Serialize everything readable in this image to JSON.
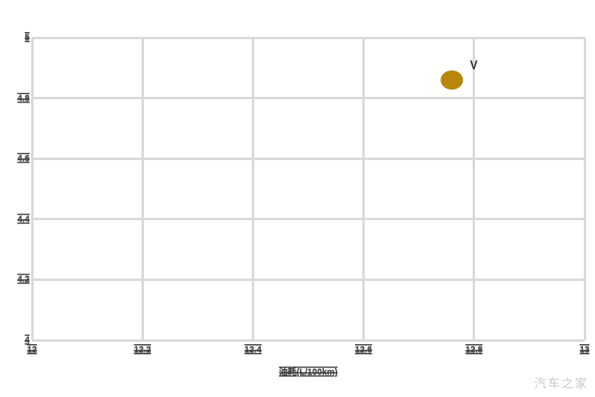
{
  "chart_data": {
    "type": "scatter",
    "title": "",
    "xlabel": "油耗(L/100km)",
    "ylabel": "",
    "xlim": [
      12,
      13
    ],
    "ylim": [
      4,
      5
    ],
    "grid": true,
    "legend_position": "none",
    "x_ticks": [
      {
        "value": 12,
        "label": "12"
      },
      {
        "value": 12.2,
        "label": "12.2"
      },
      {
        "value": 12.4,
        "label": "12.4"
      },
      {
        "value": 12.6,
        "label": "12.6"
      },
      {
        "value": 12.8,
        "label": "12.8"
      },
      {
        "value": 13,
        "label": "13"
      }
    ],
    "y_ticks": [
      {
        "value": 5,
        "label": "5"
      },
      {
        "value": 4.8,
        "label": "4.8"
      },
      {
        "value": 4.6,
        "label": "4.6"
      },
      {
        "value": 4.4,
        "label": "4.4"
      },
      {
        "value": 4.2,
        "label": "4.2"
      },
      {
        "value": 4,
        "label": "4"
      }
    ],
    "series": [
      {
        "name": "rating-vs-fuel-point",
        "color": "#b8860b",
        "marker_width": 28,
        "marker_height": 24,
        "points": [
          {
            "x": 12.76,
            "y": 4.86
          }
        ]
      }
    ],
    "annotations": [
      {
        "text": "V",
        "x": 12.8,
        "y": 4.91,
        "color": "#2e2e2e"
      }
    ]
  },
  "watermark": {
    "text": "汽车之家",
    "color": "#c9c9c9"
  },
  "colors": {
    "background": "#ffffff",
    "grid": "#d9d9d9",
    "tick_text": "#3d3d3d",
    "marker": "#b8860b"
  }
}
